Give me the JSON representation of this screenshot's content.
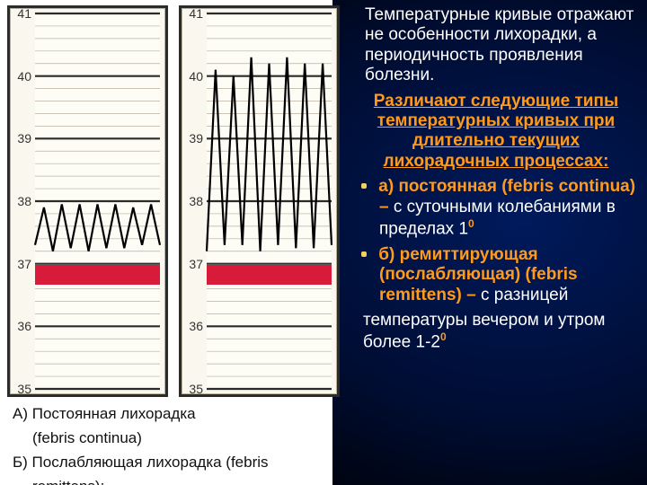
{
  "chart_common": {
    "y_ticks": [
      35,
      36,
      37,
      38,
      39,
      40,
      41
    ],
    "paper_bg": "#fdfcf5",
    "frame_bg": "#faf7ef",
    "border_color": "#2b2b2b",
    "row_color": "#2b2b2b",
    "subrow_color": "#b8afa0",
    "redband_color": "#d81b3a",
    "curve_color": "#000000",
    "label_color": "#333333",
    "label_fontsize": 14,
    "rows_per_unit": 5
  },
  "chart_a": {
    "name": "febris-continua",
    "redband_deg": 37.0,
    "curve_points_deg": [
      37.3,
      37.9,
      37.2,
      37.95,
      37.25,
      37.95,
      37.2,
      37.95,
      37.25,
      37.95,
      37.25,
      37.9,
      37.3,
      37.95,
      37.3
    ]
  },
  "chart_b": {
    "name": "febris-remittens",
    "redband_deg": 37.0,
    "curve_points_deg": [
      37.2,
      40.1,
      37.3,
      40.0,
      37.3,
      40.3,
      37.2,
      40.2,
      37.3,
      40.3,
      37.25,
      40.2,
      37.25,
      40.2,
      37.3
    ]
  },
  "captions": {
    "a_line": "А) Постоянная лихорадка",
    "a_sub": "(febris continua)",
    "b_line": "Б) Послабляющая лихорадка (febris",
    "b_sub": "remittens):"
  },
  "text": {
    "para1": "Температурные кривые отражают не особенности лихорадки, а периодичность проявления болезни.",
    "heading": "Различают следующие типы температурных кривых при длительно текущих лихорадочных процессах:",
    "a_head": "а) постоянная (febris continua) – ",
    "a_tail": "с суточными колебаниями в пределах 1",
    "a_sup": "0",
    "b_head": "б) ремиттирующая (послабляющая) (febris remittens) – ",
    "b_tail": "с разницей",
    "b_extra": " температуры вечером и утром более 1-2",
    "b_sup": "0"
  },
  "colors": {
    "bg_gradient_inner": "#001a5c",
    "bg_gradient_mid": "#000d33",
    "bg_gradient_outer": "#000000",
    "orange": "#ff9a1a",
    "white": "#ffffff",
    "black": "#111111"
  }
}
